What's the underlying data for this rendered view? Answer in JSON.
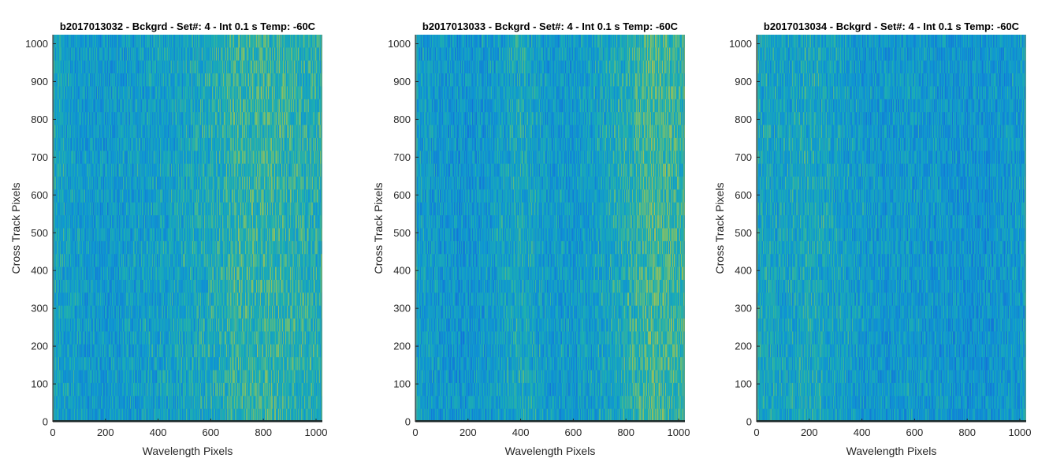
{
  "chart_data": [
    {
      "type": "heatmap",
      "title": "b2017013032 - Bckgrd - Set#: 4 - Int 0.1 s Temp: -60C",
      "xlabel": "Wavelength Pixels",
      "ylabel": "Cross Track Pixels",
      "xlim": [
        0,
        1024
      ],
      "ylim": [
        0,
        1024
      ],
      "xticks": [
        0,
        200,
        400,
        600,
        800,
        1000
      ],
      "yticks": [
        0,
        100,
        200,
        300,
        400,
        500,
        600,
        700,
        800,
        900,
        1000
      ],
      "colormap": "parula",
      "column_intensity_profile": {
        "x": [
          0,
          100,
          200,
          300,
          400,
          500,
          600,
          700,
          800,
          900,
          1024
        ],
        "value": [
          0.42,
          0.36,
          0.33,
          0.37,
          0.38,
          0.42,
          0.48,
          0.56,
          0.58,
          0.55,
          0.5
        ]
      }
    },
    {
      "type": "heatmap",
      "title": "b2017013033 - Bckgrd - Set#: 4 - Int 0.1 s Temp: -60C",
      "xlabel": "Wavelength Pixels",
      "ylabel": "Cross Track Pixels",
      "xlim": [
        0,
        1024
      ],
      "ylim": [
        0,
        1024
      ],
      "xticks": [
        0,
        200,
        400,
        600,
        800,
        1000
      ],
      "yticks": [
        0,
        100,
        200,
        300,
        400,
        500,
        600,
        700,
        800,
        900,
        1000
      ],
      "colormap": "parula",
      "column_intensity_profile": {
        "x": [
          0,
          100,
          200,
          300,
          400,
          500,
          600,
          700,
          800,
          900,
          1024
        ],
        "value": [
          0.38,
          0.32,
          0.3,
          0.36,
          0.46,
          0.36,
          0.34,
          0.4,
          0.5,
          0.64,
          0.55
        ]
      }
    },
    {
      "type": "heatmap",
      "title": "b2017013034 - Bckgrd - Set#: 4 - Int 0.1 s Temp: -60C",
      "xlabel": "Wavelength Pixels",
      "ylabel": "Cross Track Pixels",
      "xlim": [
        0,
        1024
      ],
      "ylim": [
        0,
        1024
      ],
      "xticks": [
        0,
        200,
        400,
        600,
        800,
        1000
      ],
      "yticks": [
        0,
        100,
        200,
        300,
        400,
        500,
        600,
        700,
        800,
        900,
        1000
      ],
      "colormap": "parula",
      "column_intensity_profile": {
        "x": [
          0,
          100,
          200,
          300,
          400,
          500,
          600,
          700,
          800,
          900,
          1024
        ],
        "value": [
          0.44,
          0.4,
          0.46,
          0.4,
          0.34,
          0.32,
          0.34,
          0.32,
          0.28,
          0.3,
          0.36
        ]
      }
    }
  ]
}
